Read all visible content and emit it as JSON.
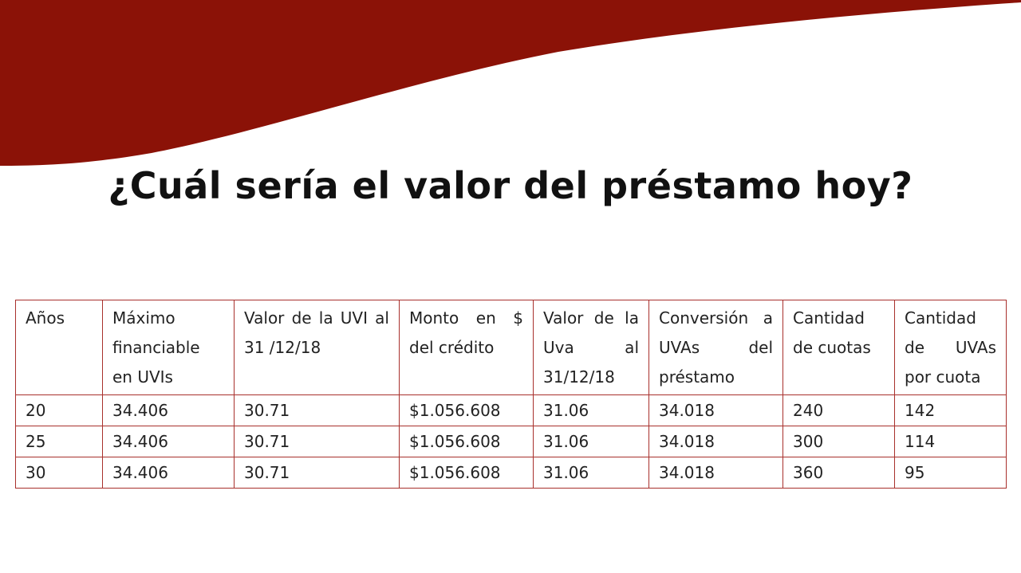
{
  "colors": {
    "banner": "#8b1207",
    "table_border": "#a8302c",
    "text": "#111111"
  },
  "title": "¿Cuál sería el valor del préstamo hoy?",
  "table": {
    "headers": [
      "Años",
      "Máximo financiable en UVIs",
      "Valor de la UVI al 31 /12/18",
      "Monto en $ del crédito",
      "Valor de la Uva al 31/12/18",
      "Conversión a UVAs del préstamo",
      "Cantidad de cuotas",
      "Cantidad de UVAs por cuota"
    ],
    "rows": [
      [
        "20",
        "34.406",
        "30.71",
        "$1.056.608",
        "31.06",
        "34.018",
        "240",
        "142"
      ],
      [
        "25",
        "34.406",
        "30.71",
        "$1.056.608",
        "31.06",
        "34.018",
        "300",
        "114"
      ],
      [
        "30",
        "34.406",
        "30.71",
        "$1.056.608",
        "31.06",
        "34.018",
        "360",
        "95"
      ]
    ]
  }
}
